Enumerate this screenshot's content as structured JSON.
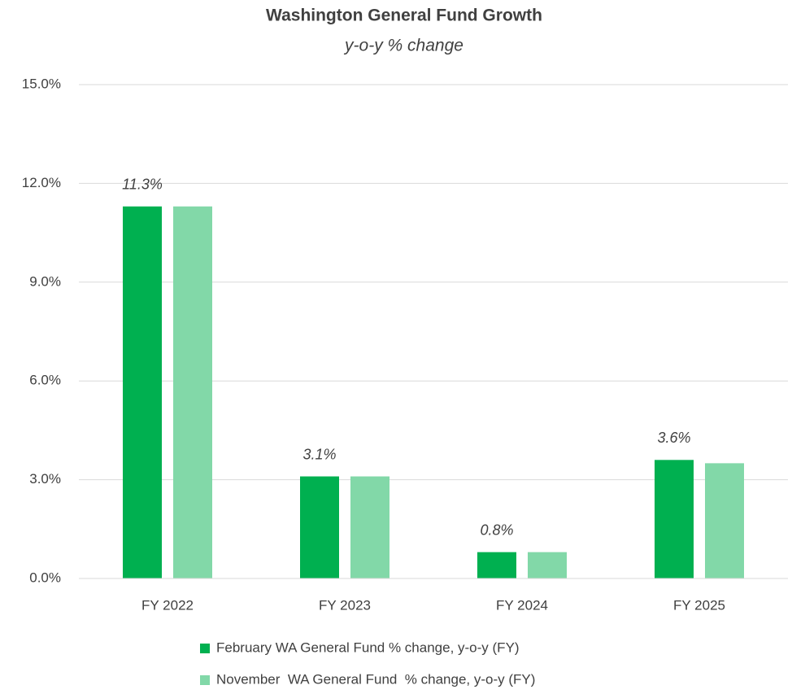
{
  "chart_data": {
    "type": "bar",
    "title": "Washington General Fund Growth",
    "subtitle": "y-o-y % change",
    "categories": [
      "FY 2022",
      "FY 2023",
      "FY 2024",
      "FY 2025"
    ],
    "series": [
      {
        "name": "February WA General Fund % change, y-o-y (FY)",
        "color": "#00b050",
        "values": [
          11.3,
          3.1,
          0.8,
          3.6
        ],
        "value_labels": [
          "11.3%",
          "3.1%",
          "0.8%",
          "3.6%"
        ]
      },
      {
        "name": "November  WA General Fund  % change, y-o-y (FY)",
        "color": "#82d8a8",
        "values": [
          11.3,
          3.1,
          0.8,
          3.5
        ]
      }
    ],
    "ylim": [
      0,
      15
    ],
    "yticks": [
      {
        "value": 0,
        "label": "0.0%"
      },
      {
        "value": 3,
        "label": "3.0%"
      },
      {
        "value": 6,
        "label": "6.0%"
      },
      {
        "value": 9,
        "label": "9.0%"
      },
      {
        "value": 12,
        "label": "12.0%"
      },
      {
        "value": 15,
        "label": "15.0%"
      }
    ],
    "grid": true,
    "legend": "bottom"
  }
}
